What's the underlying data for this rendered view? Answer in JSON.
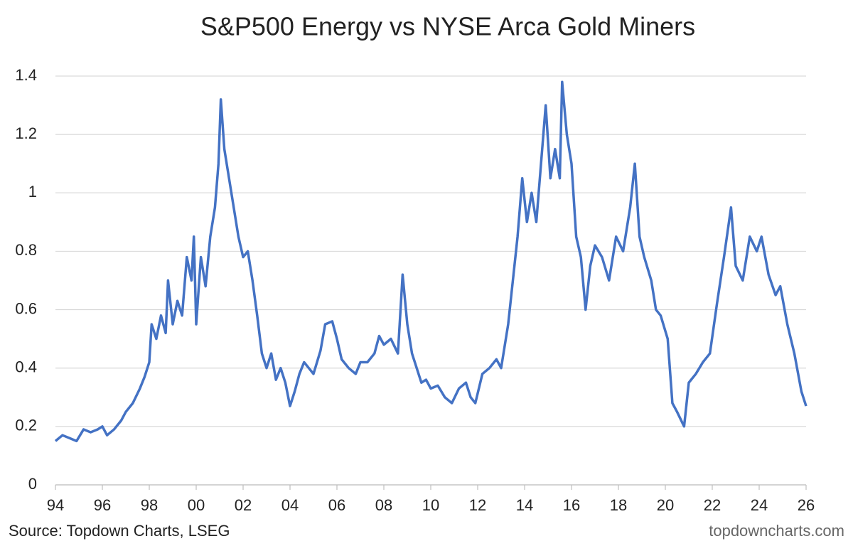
{
  "chart_data": {
    "type": "line",
    "title": "S&P500 Energy vs NYSE Arca Gold Miners",
    "source": "Source: Topdown Charts, LSEG",
    "watermark": "topdowncharts.com",
    "color": "#4472c4",
    "grid": true,
    "x": [
      1994.0,
      1994.3,
      1994.6,
      1994.9,
      1995.2,
      1995.5,
      1995.8,
      1996.0,
      1996.2,
      1996.5,
      1996.8,
      1997.0,
      1997.3,
      1997.6,
      1997.8,
      1998.0,
      1998.1,
      1998.3,
      1998.5,
      1998.7,
      1998.8,
      1999.0,
      1999.2,
      1999.4,
      1999.6,
      1999.8,
      1999.9,
      2000.0,
      2000.2,
      2000.4,
      2000.6,
      2000.8,
      2000.95,
      2001.05,
      2001.2,
      2001.4,
      2001.6,
      2001.8,
      2002.0,
      2002.2,
      2002.4,
      2002.6,
      2002.8,
      2003.0,
      2003.2,
      2003.4,
      2003.6,
      2003.8,
      2004.0,
      2004.2,
      2004.4,
      2004.6,
      2004.8,
      2005.0,
      2005.3,
      2005.5,
      2005.8,
      2006.0,
      2006.2,
      2006.5,
      2006.8,
      2007.0,
      2007.3,
      2007.6,
      2007.8,
      2008.0,
      2008.3,
      2008.6,
      2008.8,
      2009.0,
      2009.2,
      2009.4,
      2009.6,
      2009.8,
      2010.0,
      2010.3,
      2010.6,
      2010.9,
      2011.2,
      2011.5,
      2011.7,
      2011.9,
      2012.2,
      2012.5,
      2012.8,
      2013.0,
      2013.3,
      2013.5,
      2013.7,
      2013.9,
      2014.1,
      2014.3,
      2014.5,
      2014.7,
      2014.9,
      2015.1,
      2015.3,
      2015.5,
      2015.6,
      2015.8,
      2016.0,
      2016.2,
      2016.4,
      2016.6,
      2016.8,
      2017.0,
      2017.3,
      2017.6,
      2017.9,
      2018.2,
      2018.5,
      2018.7,
      2018.9,
      2019.1,
      2019.4,
      2019.6,
      2019.8,
      2020.1,
      2020.3,
      2020.5,
      2020.8,
      2021.0,
      2021.3,
      2021.6,
      2021.9,
      2022.2,
      2022.5,
      2022.8,
      2023.0,
      2023.3,
      2023.6,
      2023.9,
      2024.1,
      2024.4,
      2024.7,
      2024.9,
      2025.2,
      2025.5,
      2025.8,
      2026.0
    ],
    "values": [
      0.15,
      0.17,
      0.16,
      0.15,
      0.19,
      0.18,
      0.19,
      0.2,
      0.17,
      0.19,
      0.22,
      0.25,
      0.28,
      0.33,
      0.37,
      0.42,
      0.55,
      0.5,
      0.58,
      0.52,
      0.7,
      0.55,
      0.63,
      0.58,
      0.78,
      0.7,
      0.85,
      0.55,
      0.78,
      0.68,
      0.85,
      0.95,
      1.1,
      1.32,
      1.15,
      1.05,
      0.95,
      0.85,
      0.78,
      0.8,
      0.7,
      0.58,
      0.45,
      0.4,
      0.45,
      0.36,
      0.4,
      0.35,
      0.27,
      0.32,
      0.38,
      0.42,
      0.4,
      0.38,
      0.46,
      0.55,
      0.56,
      0.5,
      0.43,
      0.4,
      0.38,
      0.42,
      0.42,
      0.45,
      0.51,
      0.48,
      0.5,
      0.45,
      0.72,
      0.55,
      0.45,
      0.4,
      0.35,
      0.36,
      0.33,
      0.34,
      0.3,
      0.28,
      0.33,
      0.35,
      0.3,
      0.28,
      0.38,
      0.4,
      0.43,
      0.4,
      0.55,
      0.7,
      0.85,
      1.05,
      0.9,
      1.0,
      0.9,
      1.1,
      1.3,
      1.05,
      1.15,
      1.05,
      1.38,
      1.2,
      1.1,
      0.85,
      0.78,
      0.6,
      0.75,
      0.82,
      0.78,
      0.7,
      0.85,
      0.8,
      0.95,
      1.1,
      0.85,
      0.78,
      0.7,
      0.6,
      0.58,
      0.5,
      0.28,
      0.25,
      0.2,
      0.35,
      0.38,
      0.42,
      0.45,
      0.62,
      0.78,
      0.95,
      0.75,
      0.7,
      0.85,
      0.8,
      0.85,
      0.72,
      0.65,
      0.68,
      0.55,
      0.45,
      0.32,
      0.27
    ],
    "xlim": [
      1994,
      2026
    ],
    "xticks": [
      {
        "value": 1994,
        "label": "94"
      },
      {
        "value": 1996,
        "label": "96"
      },
      {
        "value": 1998,
        "label": "98"
      },
      {
        "value": 2000,
        "label": "00"
      },
      {
        "value": 2002,
        "label": "02"
      },
      {
        "value": 2004,
        "label": "04"
      },
      {
        "value": 2006,
        "label": "06"
      },
      {
        "value": 2008,
        "label": "08"
      },
      {
        "value": 2010,
        "label": "10"
      },
      {
        "value": 2012,
        "label": "12"
      },
      {
        "value": 2014,
        "label": "14"
      },
      {
        "value": 2016,
        "label": "16"
      },
      {
        "value": 2018,
        "label": "18"
      },
      {
        "value": 2020,
        "label": "20"
      },
      {
        "value": 2022,
        "label": "22"
      },
      {
        "value": 2024,
        "label": "24"
      },
      {
        "value": 2026,
        "label": "26"
      }
    ],
    "ylim": [
      0,
      1.4
    ],
    "yticks": [
      0,
      0.2,
      0.4,
      0.6,
      0.8,
      1,
      1.2,
      1.4
    ]
  }
}
